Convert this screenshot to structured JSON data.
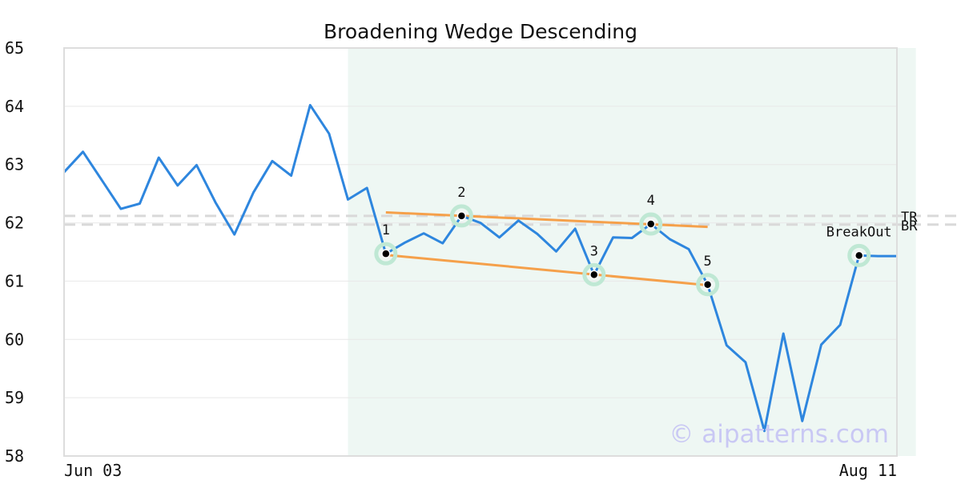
{
  "chart_data": {
    "type": "line",
    "title": "Broadening Wedge Descending",
    "xlabel": "",
    "ylabel": "",
    "x_tick_labels": [
      "Jun 03",
      "Aug 11"
    ],
    "ylim": [
      58,
      65
    ],
    "yticks": [
      58,
      59,
      60,
      61,
      62,
      63,
      64,
      65
    ],
    "grid": "horizontal",
    "series": [
      {
        "values": [
          62.87,
          63.22,
          62.73,
          62.24,
          62.33,
          63.12,
          62.64,
          62.99,
          62.35,
          61.8,
          62.52,
          63.06,
          62.81,
          64.02,
          63.53,
          62.4,
          62.6,
          61.47,
          61.66,
          61.82,
          61.65,
          62.12,
          62.0,
          61.75,
          62.04,
          61.81,
          61.51,
          61.9,
          61.11,
          61.75,
          61.74,
          61.98,
          61.72,
          61.55,
          60.94,
          59.9,
          59.61,
          58.43,
          60.1,
          58.6,
          59.91,
          60.25,
          61.44,
          61.43,
          61.43
        ]
      }
    ],
    "highlight_range": {
      "start_index": 15,
      "end_index": 45
    },
    "pattern_points": [
      {
        "label": "1",
        "index": 17,
        "value": 61.47
      },
      {
        "label": "2",
        "index": 21,
        "value": 62.12
      },
      {
        "label": "3",
        "index": 28,
        "value": 61.11
      },
      {
        "label": "4",
        "index": 31,
        "value": 61.98
      },
      {
        "label": "5",
        "index": 34,
        "value": 60.94
      },
      {
        "label": "BreakOut",
        "index": 42,
        "value": 61.44
      }
    ],
    "trendlines": [
      {
        "name": "upper",
        "x1": 17,
        "y1": 62.18,
        "x2": 34,
        "y2": 61.93
      },
      {
        "name": "lower",
        "x1": 17,
        "y1": 61.45,
        "x2": 34,
        "y2": 60.93
      }
    ],
    "reference_lines": [
      {
        "label": "TR",
        "value": 62.12
      },
      {
        "label": "BR",
        "value": 61.97
      }
    ],
    "watermark": "© aipatterns.com",
    "colors": {
      "price_line": "#2e86de",
      "trendline": "#f5a04a",
      "highlight": "#eef7f3",
      "marker_halo": "#bfe8d4",
      "reference": "#d9d9d9",
      "grid": "#e8e8e8",
      "frame": "#dddddd"
    }
  }
}
